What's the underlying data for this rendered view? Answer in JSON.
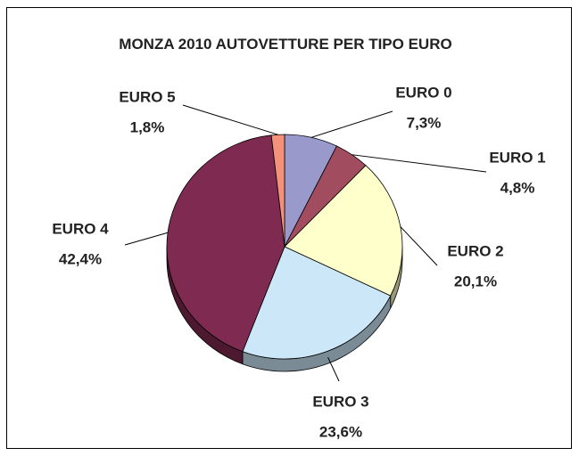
{
  "chart_data": {
    "type": "pie",
    "title": "MONZA 2010 AUTOVETTURE PER TIPO EURO",
    "categories": [
      "EURO 0",
      "EURO 1",
      "EURO 2",
      "EURO 3",
      "EURO 4",
      "EURO 5"
    ],
    "values": [
      7.3,
      4.8,
      20.1,
      23.6,
      42.4,
      1.8
    ],
    "value_labels": [
      "7,3%",
      "4,8%",
      "20,1%",
      "23,6%",
      "42,4%",
      "1,8%"
    ],
    "colors": [
      "#9999cc",
      "#a14d5f",
      "#ffffcc",
      "#cce8f8",
      "#7f2a50",
      "#f4917a"
    ]
  }
}
